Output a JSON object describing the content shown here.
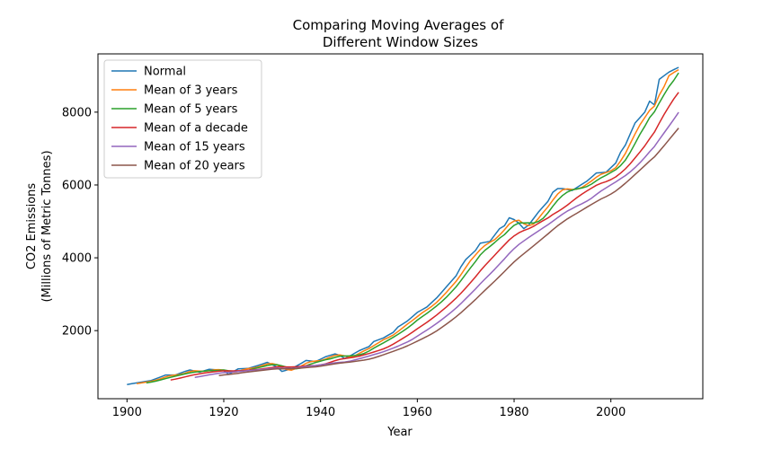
{
  "chart_data": {
    "type": "line",
    "title_line1": "Comparing Moving Averages of",
    "title_line2": " Different Window Sizes",
    "xlabel": "Year",
    "ylabel_line1": "CO2 Emissions",
    "ylabel_line2": "(Millions of Metric Tonnes)",
    "xlim": [
      1894,
      2019
    ],
    "ylim": [
      130,
      9600
    ],
    "x_ticks": [
      1900,
      1920,
      1940,
      1960,
      1980,
      2000
    ],
    "y_ticks": [
      2000,
      4000,
      6000,
      8000
    ],
    "legend_position": "upper-left",
    "grid": false,
    "raw": {
      "x": [
        1900,
        1905,
        1908,
        1910,
        1912,
        1913,
        1915,
        1917,
        1919,
        1920,
        1921,
        1923,
        1925,
        1927,
        1929,
        1931,
        1932,
        1934,
        1936,
        1937,
        1939,
        1941,
        1943,
        1944,
        1945,
        1946,
        1948,
        1950,
        1951,
        1953,
        1955,
        1956,
        1958,
        1960,
        1962,
        1964,
        1966,
        1968,
        1969,
        1970,
        1972,
        1973,
        1975,
        1977,
        1978,
        1979,
        1980,
        1981,
        1982,
        1983,
        1985,
        1987,
        1988,
        1989,
        1990,
        1992,
        1995,
        1997,
        1999,
        2001,
        2002,
        2003,
        2005,
        2007,
        2008,
        2009,
        2010,
        2012,
        2014
      ],
      "y": [
        520,
        630,
        780,
        780,
        880,
        920,
        860,
        940,
        920,
        900,
        800,
        950,
        960,
        1040,
        1130,
        1000,
        880,
        950,
        1100,
        1180,
        1150,
        1280,
        1360,
        1320,
        1230,
        1300,
        1450,
        1560,
        1700,
        1800,
        1950,
        2100,
        2270,
        2500,
        2650,
        2900,
        3200,
        3500,
        3750,
        3950,
        4200,
        4400,
        4450,
        4800,
        4880,
        5100,
        5050,
        4950,
        4800,
        4900,
        5250,
        5550,
        5800,
        5900,
        5900,
        5850,
        6100,
        6330,
        6350,
        6600,
        6900,
        7100,
        7700,
        8000,
        8300,
        8200,
        8900,
        9100,
        9230
      ]
    },
    "series": [
      {
        "name": "Normal",
        "color": "#1f77b4",
        "window": 1
      },
      {
        "name": "Mean of 3 years",
        "color": "#ff7f0e",
        "window": 3
      },
      {
        "name": "Mean of 5 years",
        "color": "#2ca02c",
        "window": 5
      },
      {
        "name": "Mean of a decade",
        "color": "#d62728",
        "window": 10
      },
      {
        "name": "Mean of 15 years",
        "color": "#9467bd",
        "window": 15
      },
      {
        "name": "Mean of 20 years",
        "color": "#8c564b",
        "window": 20
      }
    ]
  }
}
